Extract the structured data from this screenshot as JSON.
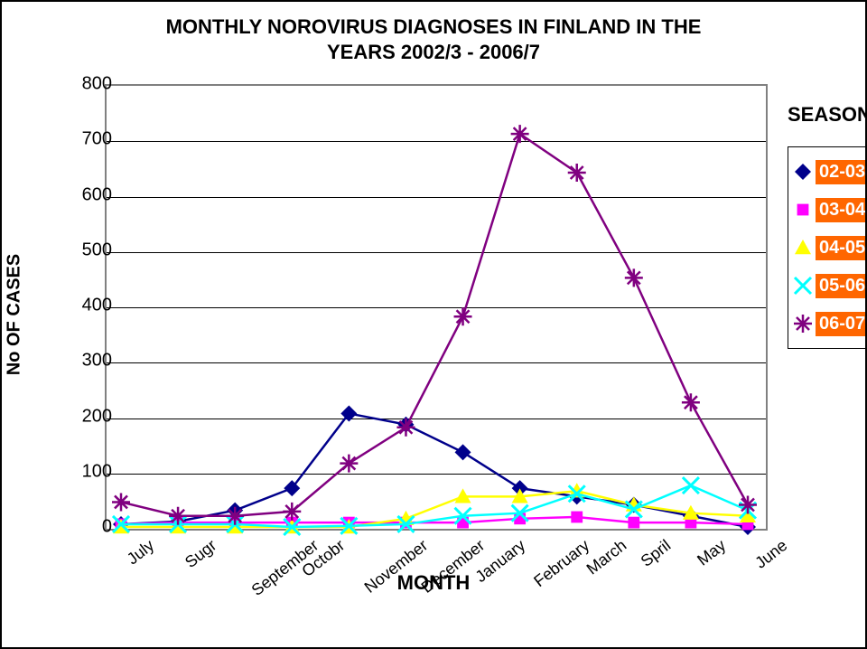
{
  "chart": {
    "type": "line",
    "title_line1": "MONTHLY NOROVIRUS DIAGNOSES IN FINLAND IN THE",
    "title_line2": "YEARS 2002/3 - 2006/7",
    "y_axis_label": "No OF CASES",
    "x_axis_label": "MONTH",
    "background_color": "#ffffff",
    "plot_border_color": "#808080",
    "grid_color": "#000000",
    "ylim": [
      0,
      800
    ],
    "ytick_step": 100,
    "yticks": [
      0,
      100,
      200,
      300,
      400,
      500,
      600,
      700,
      800
    ],
    "categories": [
      "July",
      "Sugr",
      "September",
      "Octobr",
      "November",
      "December",
      "January",
      "February",
      "March",
      "Spril",
      "May",
      "June"
    ],
    "tick_fontsize": 20,
    "title_fontsize": 22,
    "axislabel_fontsize": 22,
    "series": [
      {
        "key": "s0203",
        "label": "02-03",
        "color": "#00008b",
        "marker": "diamond",
        "marker_size": 12,
        "line_width": 2.5,
        "values": [
          5,
          10,
          30,
          70,
          205,
          185,
          135,
          70,
          55,
          40,
          20,
          0
        ]
      },
      {
        "key": "s0304",
        "label": "03-04",
        "color": "#ff00ff",
        "marker": "square",
        "marker_size": 10,
        "line_width": 2.5,
        "values": [
          5,
          8,
          8,
          8,
          8,
          8,
          8,
          15,
          18,
          8,
          8,
          5
        ]
      },
      {
        "key": "s0405",
        "label": "04-05",
        "color": "#ffff00",
        "marker": "triangle",
        "marker_size": 12,
        "line_width": 2.5,
        "values": [
          0,
          0,
          0,
          0,
          0,
          15,
          55,
          55,
          65,
          40,
          25,
          20
        ]
      },
      {
        "key": "s0506",
        "label": "05-06",
        "color": "#00ffff",
        "marker": "x",
        "marker_size": 12,
        "line_width": 2.5,
        "values": [
          5,
          5,
          5,
          0,
          2,
          5,
          20,
          25,
          60,
          32,
          75,
          30
        ]
      },
      {
        "key": "s0607",
        "label": "06-07",
        "color": "#800080",
        "marker": "star",
        "marker_size": 14,
        "line_width": 2.5,
        "values": [
          45,
          20,
          20,
          28,
          115,
          180,
          380,
          710,
          640,
          450,
          225,
          40
        ]
      }
    ],
    "legend": {
      "title": "SEASON",
      "label_bg": "#ff6600",
      "label_color": "#ffffff",
      "position": "right"
    }
  }
}
